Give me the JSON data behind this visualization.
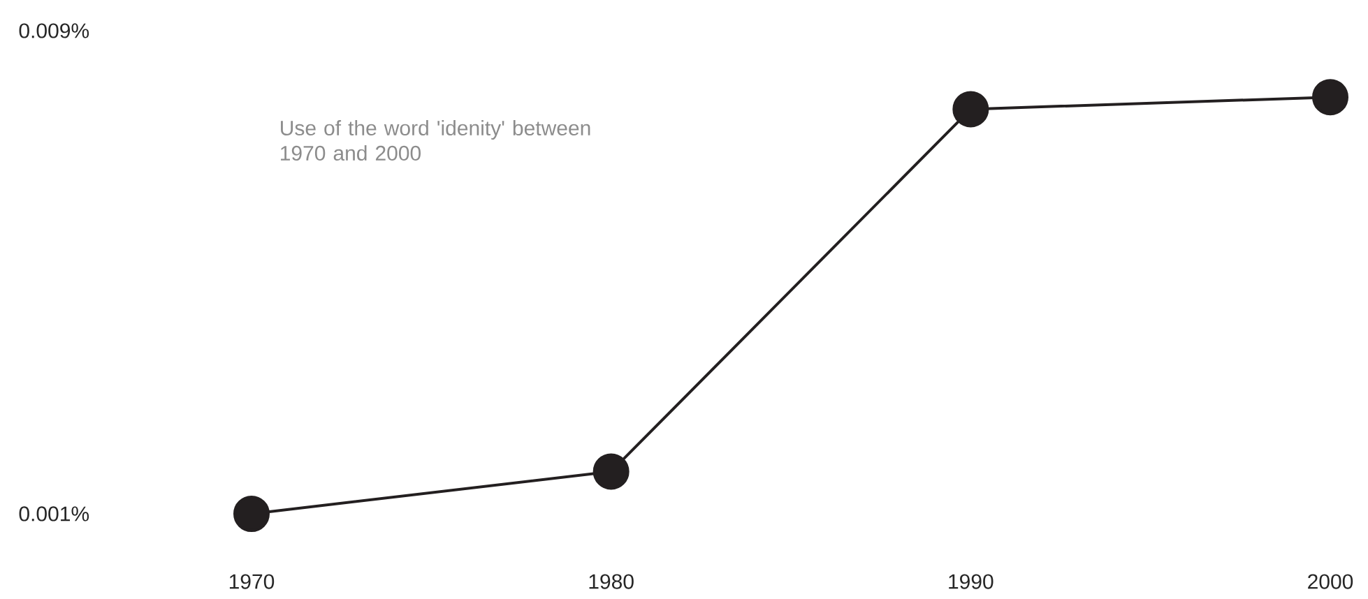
{
  "chart_data": {
    "type": "line",
    "title": "Use of the word 'idenity' between 1970 and 2000",
    "x": [
      1970,
      1980,
      1990,
      2000
    ],
    "series": [
      {
        "color": "#231f20",
        "values": [
          0.001,
          0.0017,
          0.0077,
          0.0079
        ]
      }
    ],
    "xlim": [
      1970,
      2000
    ],
    "xticks": [
      1970,
      1980,
      1990,
      2000
    ],
    "ylim": [
      0.001,
      0.009
    ],
    "yticks": [
      {
        "value": 0.001,
        "label": "0.001%"
      },
      {
        "value": 0.009,
        "label": "0.009%"
      }
    ],
    "grid": false,
    "marker": "circle",
    "line_style": "solid"
  }
}
